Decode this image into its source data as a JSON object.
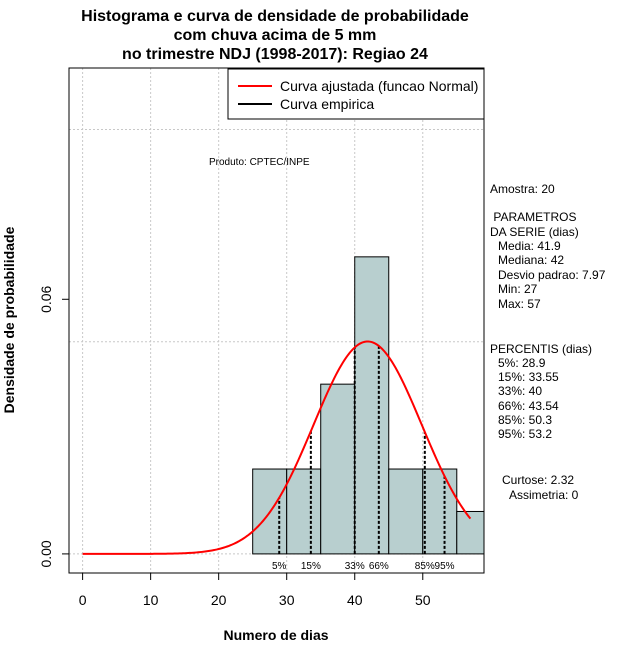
{
  "chart_data": {
    "type": "bar",
    "title": [
      "Histograma e curva de densidade de probabilidade",
      "com chuva acima de 5 mm",
      "no trimestre NDJ (1998-2017): Regiao 24"
    ],
    "xlabel": "Numero de dias",
    "ylabel": "Densidade de probabilidade",
    "xlim": [
      -2,
      59
    ],
    "ylim": [
      -0.0045,
      0.1145
    ],
    "x_ticks": [
      0,
      10,
      20,
      30,
      40,
      50
    ],
    "y_ticks": [
      0.0,
      0.06
    ],
    "y_tick_labels": [
      "0.00",
      "0.06"
    ],
    "grid_x": [
      0,
      10,
      20,
      30,
      40,
      50
    ],
    "grid_y": [
      0.0,
      0.05,
      0.1
    ],
    "bins": [
      {
        "x0": 25,
        "x1": 30,
        "density": 0.02
      },
      {
        "x0": 30,
        "x1": 35,
        "density": 0.02
      },
      {
        "x0": 35,
        "x1": 40,
        "density": 0.04
      },
      {
        "x0": 40,
        "x1": 45,
        "density": 0.07
      },
      {
        "x0": 45,
        "x1": 50,
        "density": 0.02
      },
      {
        "x0": 50,
        "x1": 55,
        "density": 0.02
      },
      {
        "x0": 55,
        "x1": 60,
        "density": 0.01
      }
    ],
    "fitted_curve": {
      "name": "Curva ajustada (funcao Normal)",
      "mean": 41.9,
      "sd": 7.97,
      "x_from": 0,
      "x_to": 57,
      "color": "#ff0000"
    },
    "empirical_curve": {
      "name": "Curva empirica",
      "color": "#000000"
    },
    "percentile_lines": [
      {
        "label": "5%",
        "x": 28.9
      },
      {
        "label": "15%",
        "x": 33.55
      },
      {
        "label": "33%",
        "x": 40
      },
      {
        "label": "66%",
        "x": 43.54
      },
      {
        "label": "85%",
        "x": 50.3
      },
      {
        "label": "95%",
        "x": 53.2
      }
    ],
    "bar_color": "#b8cfcf",
    "credit": "Produto: CPTEC/INPE",
    "sample": "Amostra: 20",
    "parameters_header": [
      " PARAMETROS",
      "DA SERIE (dias)"
    ],
    "parameters": [
      "Media: 41.9",
      "Mediana: 42",
      "Desvio padrao: 7.97",
      "Min: 27",
      "Max: 57"
    ],
    "percentiles_header": "PERCENTIS (dias)",
    "percentiles": [
      "5%: 28.9",
      "15%: 33.55",
      "33%: 40",
      "66%: 43.54",
      "85%: 50.3",
      "95%: 53.2"
    ],
    "shape": [
      "Curtose: 2.32",
      "Assimetria: 0"
    ]
  }
}
